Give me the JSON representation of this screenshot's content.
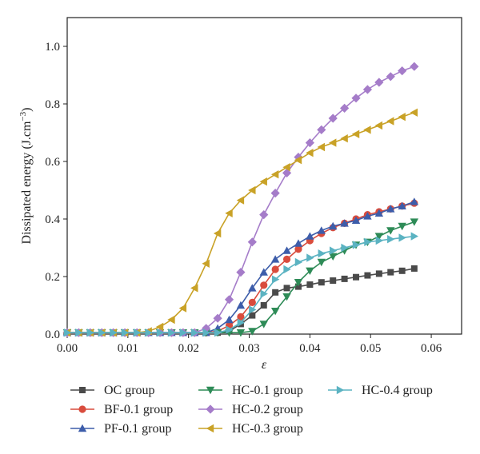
{
  "chart_data": {
    "type": "line",
    "xlabel": "ε",
    "ylabel": "Dissipated energy (J.cm",
    "ylabel_sup": "−3",
    "ylabel_close": ")",
    "xlim": [
      0,
      0.065
    ],
    "ylim": [
      0,
      1.1
    ],
    "x_ticks": [
      0.0,
      0.01,
      0.02,
      0.03,
      0.04,
      0.05,
      0.06
    ],
    "x_tick_labels": [
      "0.00",
      "0.01",
      "0.02",
      "0.03",
      "0.04",
      "0.05",
      "0.06"
    ],
    "y_ticks": [
      0.0,
      0.2,
      0.4,
      0.6,
      0.8,
      1.0
    ],
    "y_tick_labels": [
      "0.0",
      "0.2",
      "0.4",
      "0.6",
      "0.8",
      "1.0"
    ],
    "grid": false,
    "legend_position": "bottom",
    "x": [
      0.0,
      0.0019,
      0.0038,
      0.0057,
      0.0076,
      0.0095,
      0.0115,
      0.0134,
      0.0153,
      0.0172,
      0.0191,
      0.021,
      0.0229,
      0.0248,
      0.0267,
      0.0286,
      0.0305,
      0.0324,
      0.0343,
      0.0362,
      0.0381,
      0.04,
      0.0419,
      0.0438,
      0.0457,
      0.0476,
      0.0495,
      0.0514,
      0.0533,
      0.0552,
      0.0572
    ],
    "series": [
      {
        "name": "OC group",
        "color": "#4a4a4a",
        "marker": "square",
        "values": [
          0.005,
          0.005,
          0.005,
          0.005,
          0.005,
          0.005,
          0.005,
          0.005,
          0.005,
          0.005,
          0.005,
          0.005,
          0.005,
          0.005,
          0.01,
          0.035,
          0.065,
          0.1,
          0.145,
          0.16,
          0.165,
          0.172,
          0.18,
          0.186,
          0.192,
          0.198,
          0.204,
          0.21,
          0.215,
          0.22,
          0.228
        ]
      },
      {
        "name": "BF-0.1 group",
        "color": "#d94c3d",
        "marker": "circle",
        "values": [
          0.005,
          0.005,
          0.005,
          0.005,
          0.005,
          0.005,
          0.005,
          0.005,
          0.005,
          0.005,
          0.005,
          0.005,
          0.005,
          0.01,
          0.03,
          0.06,
          0.11,
          0.17,
          0.225,
          0.26,
          0.295,
          0.325,
          0.35,
          0.37,
          0.385,
          0.4,
          0.415,
          0.425,
          0.435,
          0.445,
          0.455
        ]
      },
      {
        "name": "PF-0.1 group",
        "color": "#3d5daa",
        "marker": "triangle-up",
        "values": [
          0.005,
          0.005,
          0.005,
          0.005,
          0.005,
          0.005,
          0.005,
          0.005,
          0.005,
          0.005,
          0.005,
          0.005,
          0.005,
          0.02,
          0.05,
          0.1,
          0.16,
          0.215,
          0.26,
          0.29,
          0.315,
          0.34,
          0.36,
          0.375,
          0.385,
          0.395,
          0.41,
          0.42,
          0.435,
          0.445,
          0.46
        ]
      },
      {
        "name": "HC-0.1 group",
        "color": "#2e8b57",
        "marker": "triangle-down",
        "values": [
          0.005,
          0.005,
          0.005,
          0.005,
          0.005,
          0.005,
          0.005,
          0.005,
          0.005,
          0.005,
          0.005,
          0.005,
          0.005,
          0.005,
          0.005,
          0.005,
          0.01,
          0.035,
          0.08,
          0.13,
          0.18,
          0.22,
          0.25,
          0.27,
          0.29,
          0.31,
          0.32,
          0.34,
          0.36,
          0.375,
          0.39
        ]
      },
      {
        "name": "HC-0.2 group",
        "color": "#a57cc9",
        "marker": "diamond",
        "values": [
          0.005,
          0.005,
          0.005,
          0.005,
          0.005,
          0.005,
          0.005,
          0.005,
          0.005,
          0.005,
          0.005,
          0.005,
          0.02,
          0.055,
          0.12,
          0.215,
          0.32,
          0.415,
          0.49,
          0.56,
          0.615,
          0.665,
          0.71,
          0.75,
          0.785,
          0.82,
          0.85,
          0.875,
          0.895,
          0.915,
          0.93
        ]
      },
      {
        "name": "HC-0.3 group",
        "color": "#c9a227",
        "marker": "triangle-left",
        "values": [
          0.005,
          0.005,
          0.005,
          0.005,
          0.005,
          0.005,
          0.005,
          0.01,
          0.025,
          0.05,
          0.09,
          0.16,
          0.245,
          0.35,
          0.42,
          0.465,
          0.5,
          0.53,
          0.555,
          0.58,
          0.605,
          0.63,
          0.65,
          0.665,
          0.68,
          0.695,
          0.71,
          0.725,
          0.74,
          0.755,
          0.77
        ]
      },
      {
        "name": "HC-0.4 group",
        "color": "#5bb3c2",
        "marker": "triangle-right",
        "values": [
          0.005,
          0.005,
          0.005,
          0.005,
          0.005,
          0.005,
          0.005,
          0.005,
          0.005,
          0.005,
          0.005,
          0.005,
          0.005,
          0.005,
          0.015,
          0.04,
          0.085,
          0.14,
          0.19,
          0.225,
          0.25,
          0.265,
          0.28,
          0.29,
          0.3,
          0.31,
          0.32,
          0.325,
          0.33,
          0.335,
          0.34
        ]
      }
    ]
  }
}
